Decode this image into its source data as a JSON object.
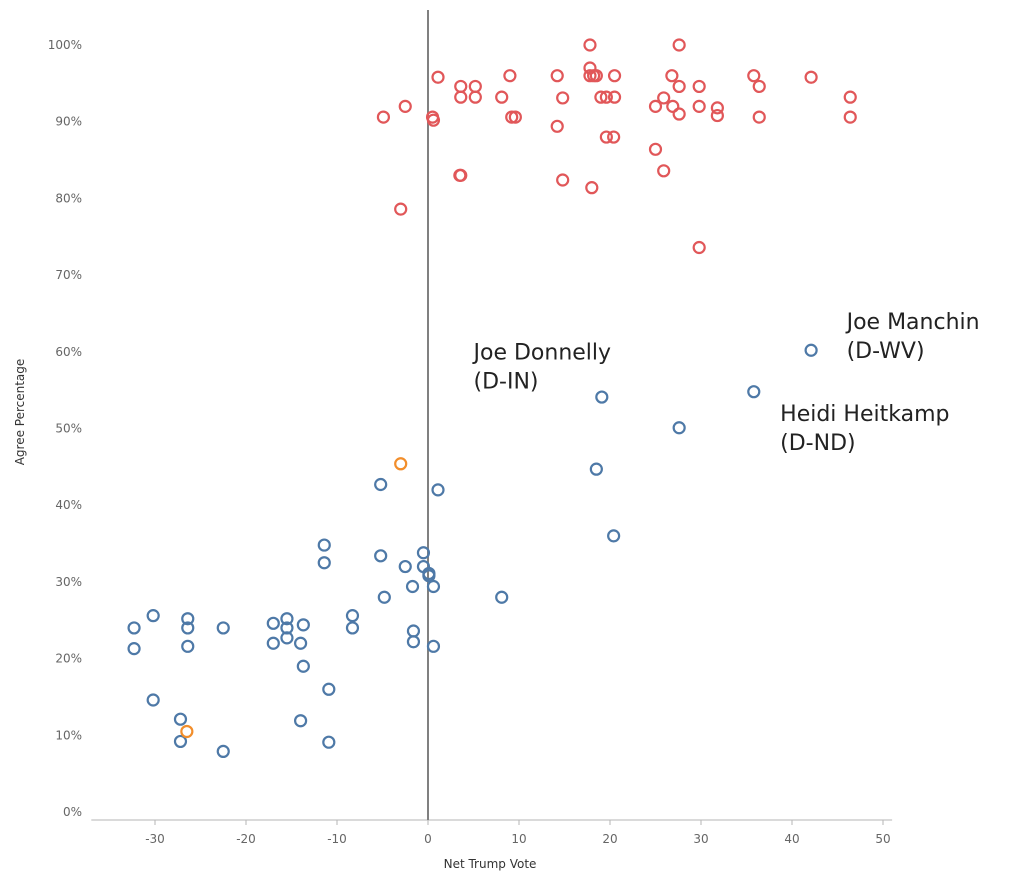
{
  "chart_data": {
    "type": "scatter",
    "xlabel": "Net Trump Vote",
    "ylabel": "Agree Percentage",
    "xlim": [
      -37,
      51
    ],
    "ylim": [
      0,
      100
    ],
    "x_ticks": [
      -30,
      -20,
      -10,
      0,
      10,
      20,
      30,
      40,
      50
    ],
    "y_ticks": [
      0,
      10,
      20,
      30,
      40,
      50,
      60,
      70,
      80,
      90,
      100
    ],
    "y_tick_format": "percent",
    "reference_line_x": 0,
    "grid": false,
    "marker": "hollow-circle",
    "series": [
      {
        "color": "#e15759",
        "points": [
          [
            17.8,
            100
          ],
          [
            27.6,
            100
          ],
          [
            17.8,
            97
          ],
          [
            17.8,
            96
          ],
          [
            18.5,
            96
          ],
          [
            18.2,
            96
          ],
          [
            20.5,
            96
          ],
          [
            14.2,
            96
          ],
          [
            9,
            96
          ],
          [
            1.1,
            95.8
          ],
          [
            26.8,
            96
          ],
          [
            35.8,
            96
          ],
          [
            42.1,
            95.8
          ],
          [
            3.6,
            94.6
          ],
          [
            5.2,
            94.6
          ],
          [
            27.6,
            94.6
          ],
          [
            29.8,
            94.6
          ],
          [
            36.4,
            94.6
          ],
          [
            3.6,
            93.2
          ],
          [
            5.2,
            93.2
          ],
          [
            8.1,
            93.2
          ],
          [
            14.8,
            93.1
          ],
          [
            19,
            93.2
          ],
          [
            19.6,
            93.2
          ],
          [
            20.5,
            93.2
          ],
          [
            25.9,
            93.1
          ],
          [
            46.4,
            93.2
          ],
          [
            -2.5,
            92
          ],
          [
            25,
            92
          ],
          [
            26.9,
            92
          ],
          [
            29.8,
            92
          ],
          [
            31.8,
            91.8
          ],
          [
            -4.9,
            90.6
          ],
          [
            0.5,
            90.6
          ],
          [
            0.6,
            90.2
          ],
          [
            9.2,
            90.6
          ],
          [
            9.6,
            90.6
          ],
          [
            27.6,
            91
          ],
          [
            31.8,
            90.8
          ],
          [
            36.4,
            90.6
          ],
          [
            46.4,
            90.6
          ],
          [
            14.2,
            89.4
          ],
          [
            19.6,
            88
          ],
          [
            20.4,
            88
          ],
          [
            25,
            86.4
          ],
          [
            3.5,
            83
          ],
          [
            3.6,
            83
          ],
          [
            14.8,
            82.4
          ],
          [
            25.9,
            83.6
          ],
          [
            18,
            81.4
          ],
          [
            -3,
            78.6
          ],
          [
            29.8,
            73.6
          ]
        ]
      },
      {
        "color": "#4e79a7",
        "points": [
          [
            42.1,
            60.2
          ],
          [
            35.8,
            54.8
          ],
          [
            19.1,
            54.1
          ],
          [
            27.6,
            50.1
          ],
          [
            18.5,
            44.7
          ],
          [
            20.4,
            36
          ],
          [
            -5.2,
            42.7
          ],
          [
            1.1,
            42
          ],
          [
            -11.4,
            34.8
          ],
          [
            -11.4,
            32.5
          ],
          [
            -5.2,
            33.4
          ],
          [
            -0.5,
            33.8
          ],
          [
            -2.5,
            32
          ],
          [
            -0.5,
            32
          ],
          [
            0.1,
            31.1
          ],
          [
            0.1,
            30.8
          ],
          [
            -1.7,
            29.4
          ],
          [
            0.6,
            29.4
          ],
          [
            -4.8,
            28
          ],
          [
            8.1,
            28
          ],
          [
            -30.2,
            25.6
          ],
          [
            -26.4,
            25.2
          ],
          [
            -15.5,
            25.2
          ],
          [
            -8.3,
            25.6
          ],
          [
            -32.3,
            24
          ],
          [
            -26.4,
            24
          ],
          [
            -22.5,
            24
          ],
          [
            -17,
            24.6
          ],
          [
            -15.5,
            24
          ],
          [
            -13.7,
            24.4
          ],
          [
            -8.3,
            24
          ],
          [
            -1.6,
            23.6
          ],
          [
            -15.5,
            22.7
          ],
          [
            -17,
            22
          ],
          [
            -14,
            22
          ],
          [
            -1.6,
            22.2
          ],
          [
            -32.3,
            21.3
          ],
          [
            -26.4,
            21.6
          ],
          [
            0.6,
            21.6
          ],
          [
            -13.7,
            19
          ],
          [
            -10.9,
            16
          ],
          [
            -30.2,
            14.6
          ],
          [
            -27.2,
            12.1
          ],
          [
            -14,
            11.9
          ],
          [
            -27.2,
            9.2
          ],
          [
            -10.9,
            9.1
          ],
          [
            -22.5,
            7.9
          ]
        ]
      },
      {
        "color": "#f28e2b",
        "points": [
          [
            -3,
            45.4
          ],
          [
            -26.5,
            10.5
          ]
        ]
      }
    ],
    "annotations": [
      {
        "text": "Joe Donnelly",
        "line2": "(D-IN)",
        "x": 5,
        "y": 59
      },
      {
        "text": "Joe Manchin",
        "line2": "(D-WV)",
        "x": 46,
        "y": 63
      },
      {
        "text": "Heidi Heitkamp",
        "line2": "(D-ND)",
        "x": 38.7,
        "y": 51
      }
    ]
  }
}
